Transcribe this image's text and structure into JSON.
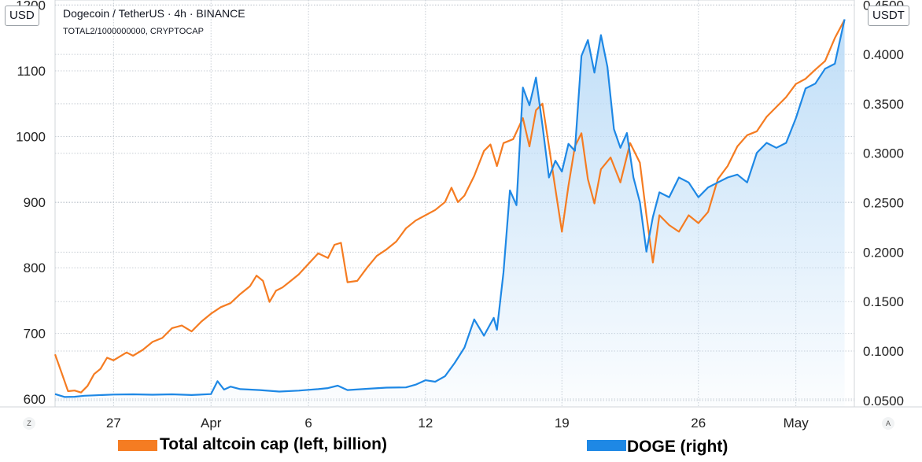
{
  "header": {
    "symbol_line": "Dogecoin / TetherUS · 4h · BINANCE",
    "overlay_line": "TOTAL2/1000000000, CRYPTOCAP"
  },
  "badges": {
    "left_unit": "USD",
    "right_unit": "USDT"
  },
  "corner_buttons": {
    "left": "Z",
    "right": "A"
  },
  "legend": [
    {
      "label": "Total altcoin cap (left, billion)",
      "color": "#f57c22"
    },
    {
      "label": "DOGE (right)",
      "color": "#1e88e5"
    }
  ],
  "colors": {
    "altcoin_line": "#f57c22",
    "doge_line": "#1e88e5",
    "doge_fill": "#bcdcf7",
    "grid": "#c7cdd4"
  },
  "chart_data": {
    "type": "line",
    "title": "",
    "x_axis": {
      "type": "date",
      "range": [
        "2021-03-24",
        "2021-05-04"
      ],
      "ticks": [
        {
          "label": "27",
          "date": "2021-03-27"
        },
        {
          "label": "Apr",
          "date": "2021-04-01"
        },
        {
          "label": "6",
          "date": "2021-04-06"
        },
        {
          "label": "12",
          "date": "2021-04-12"
        },
        {
          "label": "19",
          "date": "2021-04-19"
        },
        {
          "label": "26",
          "date": "2021-04-26"
        },
        {
          "label": "May",
          "date": "2021-05-01"
        }
      ]
    },
    "y_left": {
      "unit": "USD",
      "ylim": [
        588,
        1208
      ],
      "ticks": [
        600,
        700,
        800,
        900,
        1000,
        1100,
        1200
      ],
      "tick_labels": [
        "600",
        "700",
        "800",
        "900",
        "1000",
        "1100",
        "1200"
      ]
    },
    "y_right": {
      "unit": "USDT",
      "ylim": [
        0.0435,
        0.455
      ],
      "ticks": [
        0.05,
        0.1,
        0.15,
        0.2,
        0.25,
        0.3,
        0.35,
        0.4,
        0.45
      ],
      "tick_labels": [
        "0.0500",
        "0.1000",
        "0.1500",
        "0.2000",
        "0.2500",
        "0.3000",
        "0.3500",
        "0.4000",
        "0.4500"
      ]
    },
    "grid": true,
    "series": [
      {
        "name": "Total altcoin cap (left, billion)",
        "axis": "left",
        "points": [
          [
            "2021-03-24T00:00",
            668
          ],
          [
            "2021-03-24T08:00",
            640
          ],
          [
            "2021-03-24T16:00",
            612
          ],
          [
            "2021-03-25T00:00",
            613
          ],
          [
            "2021-03-25T08:00",
            610
          ],
          [
            "2021-03-25T16:00",
            620
          ],
          [
            "2021-03-26T00:00",
            638
          ],
          [
            "2021-03-26T08:00",
            646
          ],
          [
            "2021-03-26T16:00",
            663
          ],
          [
            "2021-03-27T00:00",
            659
          ],
          [
            "2021-03-27T08:00",
            665
          ],
          [
            "2021-03-27T16:00",
            671
          ],
          [
            "2021-03-28T00:00",
            666
          ],
          [
            "2021-03-28T12:00",
            675
          ],
          [
            "2021-03-29T00:00",
            687
          ],
          [
            "2021-03-29T12:00",
            693
          ],
          [
            "2021-03-30T00:00",
            708
          ],
          [
            "2021-03-30T12:00",
            712
          ],
          [
            "2021-03-31T00:00",
            703
          ],
          [
            "2021-03-31T12:00",
            718
          ],
          [
            "2021-04-01T00:00",
            730
          ],
          [
            "2021-04-01T12:00",
            740
          ],
          [
            "2021-04-02T00:00",
            746
          ],
          [
            "2021-04-02T12:00",
            760
          ],
          [
            "2021-04-03T00:00",
            772
          ],
          [
            "2021-04-03T08:00",
            788
          ],
          [
            "2021-04-03T16:00",
            780
          ],
          [
            "2021-04-04T00:00",
            748
          ],
          [
            "2021-04-04T08:00",
            765
          ],
          [
            "2021-04-04T16:00",
            770
          ],
          [
            "2021-04-05T00:00",
            778
          ],
          [
            "2021-04-05T12:00",
            790
          ],
          [
            "2021-04-06T00:00",
            806
          ],
          [
            "2021-04-06T12:00",
            822
          ],
          [
            "2021-04-07T00:00",
            815
          ],
          [
            "2021-04-07T08:00",
            835
          ],
          [
            "2021-04-07T16:00",
            838
          ],
          [
            "2021-04-08T00:00",
            778
          ],
          [
            "2021-04-08T12:00",
            780
          ],
          [
            "2021-04-09T00:00",
            800
          ],
          [
            "2021-04-09T12:00",
            818
          ],
          [
            "2021-04-10T00:00",
            828
          ],
          [
            "2021-04-10T12:00",
            840
          ],
          [
            "2021-04-11T00:00",
            860
          ],
          [
            "2021-04-11T12:00",
            872
          ],
          [
            "2021-04-12T00:00",
            880
          ],
          [
            "2021-04-12T12:00",
            888
          ],
          [
            "2021-04-13T00:00",
            900
          ],
          [
            "2021-04-13T08:00",
            922
          ],
          [
            "2021-04-13T16:00",
            900
          ],
          [
            "2021-04-14T00:00",
            910
          ],
          [
            "2021-04-14T12:00",
            940
          ],
          [
            "2021-04-15T00:00",
            978
          ],
          [
            "2021-04-15T08:00",
            988
          ],
          [
            "2021-04-15T16:00",
            955
          ],
          [
            "2021-04-16T00:00",
            990
          ],
          [
            "2021-04-16T12:00",
            996
          ],
          [
            "2021-04-17T00:00",
            1028
          ],
          [
            "2021-04-17T08:00",
            985
          ],
          [
            "2021-04-17T16:00",
            1040
          ],
          [
            "2021-04-18T00:00",
            1050
          ],
          [
            "2021-04-18T08:00",
            985
          ],
          [
            "2021-04-18T16:00",
            920
          ],
          [
            "2021-04-19T00:00",
            855
          ],
          [
            "2021-04-19T08:00",
            925
          ],
          [
            "2021-04-19T16:00",
            985
          ],
          [
            "2021-04-20T00:00",
            1005
          ],
          [
            "2021-04-20T08:00",
            935
          ],
          [
            "2021-04-20T16:00",
            898
          ],
          [
            "2021-04-21T00:00",
            950
          ],
          [
            "2021-04-21T12:00",
            968
          ],
          [
            "2021-04-22T00:00",
            930
          ],
          [
            "2021-04-22T12:00",
            990
          ],
          [
            "2021-04-23T00:00",
            960
          ],
          [
            "2021-04-23T08:00",
            880
          ],
          [
            "2021-04-23T16:00",
            808
          ],
          [
            "2021-04-24T00:00",
            880
          ],
          [
            "2021-04-24T12:00",
            865
          ],
          [
            "2021-04-25T00:00",
            855
          ],
          [
            "2021-04-25T12:00",
            880
          ],
          [
            "2021-04-26T00:00",
            868
          ],
          [
            "2021-04-26T12:00",
            885
          ],
          [
            "2021-04-27T00:00",
            935
          ],
          [
            "2021-04-27T12:00",
            955
          ],
          [
            "2021-04-28T00:00",
            985
          ],
          [
            "2021-04-28T12:00",
            1002
          ],
          [
            "2021-04-29T00:00",
            1008
          ],
          [
            "2021-04-29T12:00",
            1030
          ],
          [
            "2021-04-30T00:00",
            1045
          ],
          [
            "2021-04-30T12:00",
            1060
          ],
          [
            "2021-05-01T00:00",
            1080
          ],
          [
            "2021-05-01T12:00",
            1088
          ],
          [
            "2021-05-02T00:00",
            1102
          ],
          [
            "2021-05-02T12:00",
            1115
          ],
          [
            "2021-05-03T00:00",
            1150
          ],
          [
            "2021-05-03T12:00",
            1178
          ]
        ]
      },
      {
        "name": "DOGE (right)",
        "axis": "right",
        "points": [
          [
            "2021-03-24T00:00",
            0.0565
          ],
          [
            "2021-03-24T12:00",
            0.0535
          ],
          [
            "2021-03-25T00:00",
            0.0538
          ],
          [
            "2021-03-25T12:00",
            0.0548
          ],
          [
            "2021-03-26T00:00",
            0.0552
          ],
          [
            "2021-03-27T00:00",
            0.056
          ],
          [
            "2021-03-28T00:00",
            0.0562
          ],
          [
            "2021-03-29T00:00",
            0.0558
          ],
          [
            "2021-03-30T00:00",
            0.0562
          ],
          [
            "2021-03-31T00:00",
            0.0555
          ],
          [
            "2021-04-01T00:00",
            0.0565
          ],
          [
            "2021-04-01T08:00",
            0.0695
          ],
          [
            "2021-04-01T16:00",
            0.061
          ],
          [
            "2021-04-02T00:00",
            0.064
          ],
          [
            "2021-04-02T12:00",
            0.0615
          ],
          [
            "2021-04-03T12:00",
            0.0605
          ],
          [
            "2021-04-04T12:00",
            0.059
          ],
          [
            "2021-04-05T12:00",
            0.06
          ],
          [
            "2021-04-06T12:00",
            0.0615
          ],
          [
            "2021-04-07T00:00",
            0.0625
          ],
          [
            "2021-04-07T12:00",
            0.065
          ],
          [
            "2021-04-08T00:00",
            0.0605
          ],
          [
            "2021-04-09T00:00",
            0.0618
          ],
          [
            "2021-04-10T00:00",
            0.063
          ],
          [
            "2021-04-11T00:00",
            0.0632
          ],
          [
            "2021-04-11T12:00",
            0.066
          ],
          [
            "2021-04-12T00:00",
            0.0705
          ],
          [
            "2021-04-12T12:00",
            0.069
          ],
          [
            "2021-04-13T00:00",
            0.0745
          ],
          [
            "2021-04-13T12:00",
            0.088
          ],
          [
            "2021-04-14T00:00",
            0.1035
          ],
          [
            "2021-04-14T12:00",
            0.132
          ],
          [
            "2021-04-15T00:00",
            0.1155
          ],
          [
            "2021-04-15T12:00",
            0.1335
          ],
          [
            "2021-04-15T16:00",
            0.1215
          ],
          [
            "2021-04-16T00:00",
            0.1795
          ],
          [
            "2021-04-16T08:00",
            0.2625
          ],
          [
            "2021-04-16T16:00",
            0.2475
          ],
          [
            "2021-04-17T00:00",
            0.3665
          ],
          [
            "2021-04-17T08:00",
            0.3485
          ],
          [
            "2021-04-17T16:00",
            0.3765
          ],
          [
            "2021-04-18T00:00",
            0.3285
          ],
          [
            "2021-04-18T08:00",
            0.2755
          ],
          [
            "2021-04-18T16:00",
            0.2925
          ],
          [
            "2021-04-19T00:00",
            0.2815
          ],
          [
            "2021-04-19T08:00",
            0.3095
          ],
          [
            "2021-04-19T16:00",
            0.3025
          ],
          [
            "2021-04-20T00:00",
            0.3985
          ],
          [
            "2021-04-20T08:00",
            0.4145
          ],
          [
            "2021-04-20T16:00",
            0.3815
          ],
          [
            "2021-04-21T00:00",
            0.4195
          ],
          [
            "2021-04-21T08:00",
            0.3875
          ],
          [
            "2021-04-21T16:00",
            0.3245
          ],
          [
            "2021-04-22T00:00",
            0.3055
          ],
          [
            "2021-04-22T08:00",
            0.3205
          ],
          [
            "2021-04-22T16:00",
            0.2755
          ],
          [
            "2021-04-23T00:00",
            0.2505
          ],
          [
            "2021-04-23T08:00",
            0.2005
          ],
          [
            "2021-04-23T16:00",
            0.2355
          ],
          [
            "2021-04-24T00:00",
            0.2605
          ],
          [
            "2021-04-24T12:00",
            0.2555
          ],
          [
            "2021-04-25T00:00",
            0.2755
          ],
          [
            "2021-04-25T12:00",
            0.2705
          ],
          [
            "2021-04-26T00:00",
            0.2555
          ],
          [
            "2021-04-26T12:00",
            0.2655
          ],
          [
            "2021-04-27T00:00",
            0.2705
          ],
          [
            "2021-04-27T12:00",
            0.2755
          ],
          [
            "2021-04-28T00:00",
            0.2785
          ],
          [
            "2021-04-28T12:00",
            0.2705
          ],
          [
            "2021-04-29T00:00",
            0.3005
          ],
          [
            "2021-04-29T12:00",
            0.3105
          ],
          [
            "2021-04-30T00:00",
            0.3055
          ],
          [
            "2021-04-30T12:00",
            0.3105
          ],
          [
            "2021-05-01T00:00",
            0.3355
          ],
          [
            "2021-05-01T12:00",
            0.3655
          ],
          [
            "2021-05-02T00:00",
            0.3705
          ],
          [
            "2021-05-02T12:00",
            0.3855
          ],
          [
            "2021-05-03T00:00",
            0.3905
          ],
          [
            "2021-05-03T12:00",
            0.4355
          ]
        ]
      }
    ]
  }
}
